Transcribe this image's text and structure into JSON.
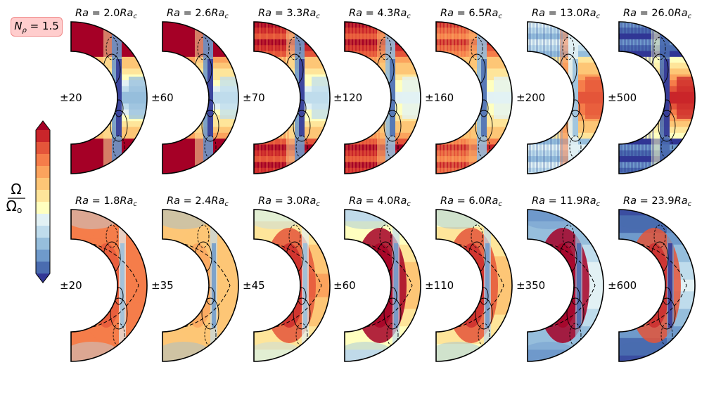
{
  "badge": {
    "text": "N_ρ = 1.5",
    "bg_color": "#ffcdcd",
    "border_color": "#f08a8a"
  },
  "colorbar": {
    "label_num": "Ω",
    "label_den": "Ω_o",
    "colors": [
      "#313695",
      "#4a6cb0",
      "#6f9acb",
      "#96bedc",
      "#bfdcec",
      "#e2f1f4",
      "#ffffbf",
      "#fee59a",
      "#fdc676",
      "#fba35d",
      "#f57d4a",
      "#e4553a",
      "#c9252a",
      "#a50026"
    ]
  },
  "rows": [
    {
      "row": "top",
      "panels": [
        {
          "title": "Ra = 2.0Ra_c",
          "range": "±20"
        },
        {
          "title": "Ra = 2.6Ra_c",
          "range": "±60"
        },
        {
          "title": "Ra = 3.3Ra_c",
          "range": "±70"
        },
        {
          "title": "Ra = 4.3Ra_c",
          "range": "±120"
        },
        {
          "title": "Ra = 6.5Ra_c",
          "range": "±160"
        },
        {
          "title": "Ra = 13.0Ra_c",
          "range": "±200"
        },
        {
          "title": "Ra = 26.0Ra_c",
          "range": "±500"
        }
      ]
    },
    {
      "row": "bottom",
      "panels": [
        {
          "title": "Ra = 1.8Ra_c",
          "range": "±20"
        },
        {
          "title": "Ra = 2.4Ra_c",
          "range": "±35"
        },
        {
          "title": "Ra = 3.0Ra_c",
          "range": "±45"
        },
        {
          "title": "Ra = 4.0Ra_c",
          "range": "±60"
        },
        {
          "title": "Ra = 6.0Ra_c",
          "range": "±110"
        },
        {
          "title": "Ra = 11.9Ra_c",
          "range": "±350"
        },
        {
          "title": "Ra = 23.9Ra_c",
          "range": "±600"
        }
      ]
    }
  ]
}
